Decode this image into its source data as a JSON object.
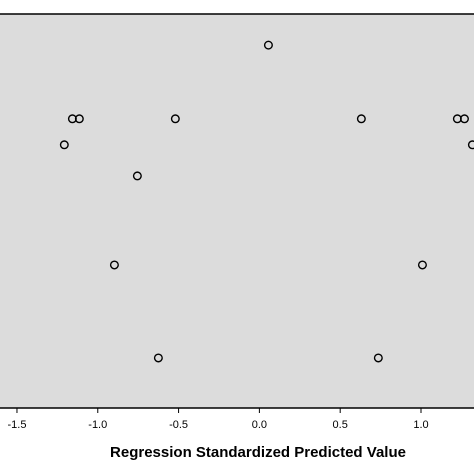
{
  "chart_data": {
    "type": "scatter",
    "xlabel": "Regression Standardized Predicted Value",
    "x": [
      0.056,
      -1.157,
      -1.114,
      -0.52,
      0.631,
      1.225,
      1.269,
      -1.207,
      1.318,
      -0.755,
      -0.897,
      1.009,
      -0.625,
      0.736
    ],
    "values": [
      0.921,
      0.734,
      0.734,
      0.734,
      0.734,
      0.734,
      0.734,
      0.668,
      0.668,
      0.589,
      0.363,
      0.363,
      0.127,
      0.127
    ],
    "color": "#000000",
    "xlim": [
      -1.605,
      1.328
    ],
    "ylim": [
      0,
      1
    ],
    "xticks": [
      {
        "value": -1.5,
        "label": "-1.5"
      },
      {
        "value": -1.0,
        "label": "-1.0"
      },
      {
        "value": -0.5,
        "label": "-0.5"
      },
      {
        "value": 0,
        "label": "0.0"
      },
      {
        "value": 0.5,
        "label": "0.5"
      },
      {
        "value": 1.0,
        "label": "1.0"
      }
    ],
    "background": "#dcdcdc"
  }
}
